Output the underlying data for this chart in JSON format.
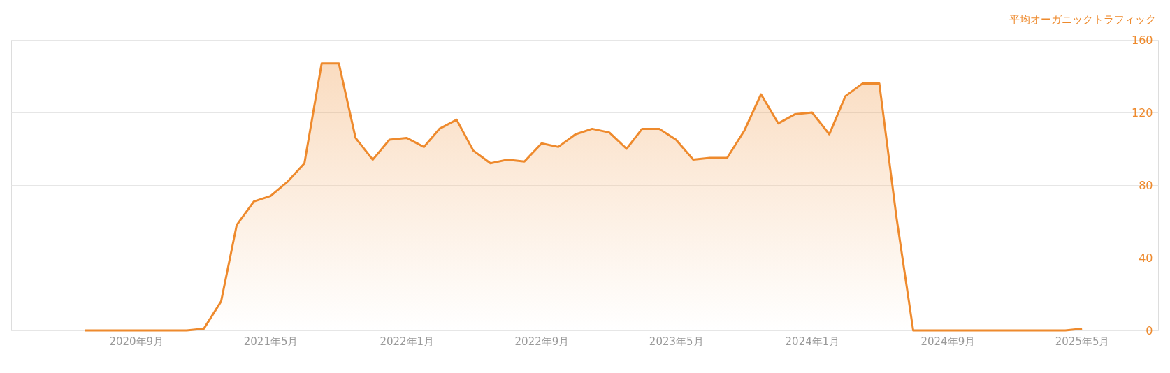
{
  "chart_data": {
    "type": "area",
    "ylabel": "平均オーガニックトラフィック",
    "x": [
      "2020-06",
      "2020-07",
      "2020-08",
      "2020-09",
      "2020-10",
      "2020-11",
      "2020-12",
      "2021-01",
      "2021-02",
      "2021-03",
      "2021-04",
      "2021-05",
      "2021-06",
      "2021-07",
      "2021-08",
      "2021-09",
      "2021-10",
      "2021-11",
      "2021-12",
      "2022-01",
      "2022-02",
      "2022-03",
      "2022-04",
      "2022-05",
      "2022-06",
      "2022-07",
      "2022-08",
      "2022-09",
      "2022-10",
      "2022-11",
      "2022-12",
      "2023-01",
      "2023-02",
      "2023-03",
      "2023-04",
      "2023-05",
      "2023-06",
      "2023-07",
      "2023-08",
      "2023-09",
      "2023-10",
      "2023-11",
      "2023-12",
      "2024-01",
      "2024-02",
      "2024-03",
      "2024-04",
      "2024-05",
      "2024-06",
      "2024-07",
      "2024-08",
      "2024-09",
      "2024-10",
      "2024-11",
      "2024-12",
      "2025-01",
      "2025-02",
      "2025-03",
      "2025-04",
      "2025-05"
    ],
    "series": [
      {
        "color": "#ee8a2d",
        "values": [
          0,
          0,
          0,
          0,
          0,
          0,
          0,
          1,
          16,
          58,
          71,
          74,
          82,
          92,
          147,
          147,
          106,
          94,
          105,
          106,
          101,
          111,
          116,
          99,
          92,
          94,
          93,
          103,
          101,
          108,
          111,
          109,
          100,
          111,
          111,
          105,
          94,
          95,
          95,
          110,
          130,
          114,
          119,
          120,
          108,
          129,
          136,
          136,
          62,
          0,
          0,
          0,
          0,
          0,
          0,
          0,
          0,
          0,
          0,
          1
        ]
      }
    ],
    "xlim": [
      "2020-01-20",
      "2025-09-15"
    ],
    "xticks": [
      {
        "value": "2020-09",
        "label": "2020年9月"
      },
      {
        "value": "2021-05",
        "label": "2021年5月"
      },
      {
        "value": "2022-01",
        "label": "2022年1月"
      },
      {
        "value": "2022-09",
        "label": "2022年9月"
      },
      {
        "value": "2023-05",
        "label": "2023年5月"
      },
      {
        "value": "2024-01",
        "label": "2024年1月"
      },
      {
        "value": "2024-09",
        "label": "2024年9月"
      },
      {
        "value": "2025-05",
        "label": "2025年5月"
      }
    ],
    "ylim": [
      0,
      160
    ],
    "yticks": [
      0,
      40,
      80,
      120,
      160
    ],
    "grid": "y"
  }
}
